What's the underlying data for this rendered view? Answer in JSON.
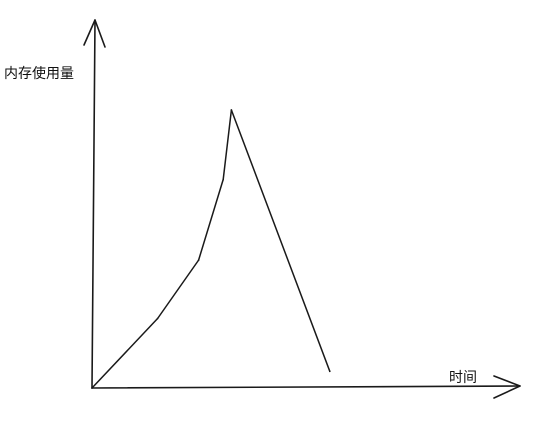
{
  "chart_data": {
    "type": "line",
    "title": "",
    "ylabel": "内存使用量",
    "xlabel": "时间",
    "grid": false,
    "legend": "none",
    "xlim": [
      0,
      100
    ],
    "ylim": [
      0,
      100
    ],
    "series": [
      {
        "name": "内存使用量",
        "x": [
          0,
          16,
          26,
          32,
          34,
          58
        ],
        "y": [
          0,
          25,
          46,
          75,
          100,
          6
        ]
      }
    ]
  },
  "colors": {
    "axis": "#1a1a1a",
    "line": "#1a1a1a",
    "background": "#ffffff"
  }
}
